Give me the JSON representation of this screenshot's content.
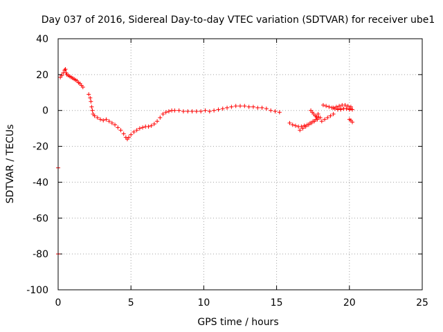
{
  "chart_data": {
    "type": "scatter",
    "title": "Day 037 of 2016, Sidereal Day-to-day VTEC variation (SDTVAR) for receiver ube1",
    "xlabel": "GPS time / hours",
    "ylabel": "SDTVAR / TECUs",
    "xlim": [
      0,
      25
    ],
    "ylim": [
      -100,
      40
    ],
    "xticks": [
      "0",
      "5",
      "10",
      "15",
      "20",
      "25"
    ],
    "yticks": [
      "40",
      "20",
      "0",
      "-20",
      "-40",
      "-60",
      "-80",
      "-100"
    ],
    "grid": true,
    "marker": "plus",
    "color": "#ff0000",
    "series": [
      {
        "name": "SDTVAR",
        "x": [
          0.0,
          0.0,
          0.15,
          0.25,
          0.35,
          0.45,
          0.5,
          0.55,
          0.6,
          0.7,
          0.8,
          0.9,
          1.0,
          1.1,
          1.2,
          1.3,
          1.4,
          1.5,
          1.6,
          1.7,
          2.1,
          2.2,
          2.25,
          2.3,
          2.35,
          2.4,
          2.5,
          2.7,
          2.9,
          3.1,
          3.3,
          3.5,
          3.7,
          3.9,
          4.1,
          4.3,
          4.5,
          4.65,
          4.75,
          4.85,
          5.0,
          5.2,
          5.4,
          5.6,
          5.8,
          6.0,
          6.2,
          6.4,
          6.6,
          6.8,
          7.0,
          7.2,
          7.4,
          7.6,
          7.8,
          8.0,
          8.3,
          8.6,
          8.9,
          9.2,
          9.5,
          9.8,
          10.1,
          10.4,
          10.7,
          11.0,
          11.3,
          11.6,
          11.9,
          12.2,
          12.5,
          12.8,
          13.1,
          13.4,
          13.7,
          14.0,
          14.3,
          14.6,
          14.9,
          15.2,
          15.9,
          16.1,
          16.3,
          16.5,
          16.7,
          16.9,
          17.1,
          17.3,
          17.5,
          17.7,
          17.9,
          16.6,
          16.8,
          17.0,
          17.2,
          17.4,
          17.6,
          17.8,
          18.0,
          17.35,
          17.45,
          17.55,
          17.65,
          17.75,
          17.85,
          18.1,
          18.3,
          18.5,
          18.7,
          18.9,
          18.2,
          18.4,
          18.6,
          18.8,
          19.0,
          19.2,
          19.4,
          19.6,
          19.8,
          20.0,
          20.1,
          18.9,
          19.1,
          19.3,
          19.5,
          19.7,
          19.9,
          20.1,
          19.2,
          19.4,
          19.6,
          19.8,
          20.0,
          20.2,
          20.0,
          20.1,
          20.2
        ],
        "values": [
          -32,
          -80,
          18.5,
          19.5,
          21,
          22.5,
          23,
          21,
          20,
          19.5,
          19,
          18.5,
          18,
          17.5,
          17,
          16.5,
          15.5,
          15,
          14,
          13,
          9,
          7,
          5,
          2,
          0,
          -2,
          -3,
          -4,
          -5,
          -5.5,
          -5,
          -6,
          -7,
          -8,
          -9.5,
          -11,
          -13,
          -15,
          -16,
          -15,
          -13.5,
          -12,
          -11,
          -10,
          -9.5,
          -9,
          -9,
          -8.5,
          -7.5,
          -6,
          -4,
          -2,
          -1,
          -0.5,
          0,
          0,
          0,
          -0.5,
          -0.5,
          -0.5,
          -0.5,
          -0.5,
          0,
          -0.5,
          0,
          0.5,
          1,
          1.5,
          2,
          2.5,
          2.5,
          2.5,
          2,
          2,
          1.5,
          1.5,
          1,
          0,
          -0.5,
          -1,
          -7,
          -8,
          -8.5,
          -9,
          -9,
          -8.5,
          -8,
          -7,
          -6,
          -5,
          -4,
          -11,
          -10,
          -9,
          -8,
          -7,
          -6,
          -5,
          -4,
          0,
          -1,
          -2,
          -3,
          -3.5,
          -2,
          -6,
          -5,
          -4,
          -3,
          -2,
          3,
          2.5,
          2,
          1.5,
          1,
          1,
          1,
          1,
          1,
          1,
          1,
          1.5,
          2,
          2.5,
          3,
          3,
          2.5,
          2,
          0.5,
          0.5,
          1,
          1,
          0.5,
          0.5,
          -5,
          -5.5,
          -6.5
        ]
      }
    ]
  }
}
